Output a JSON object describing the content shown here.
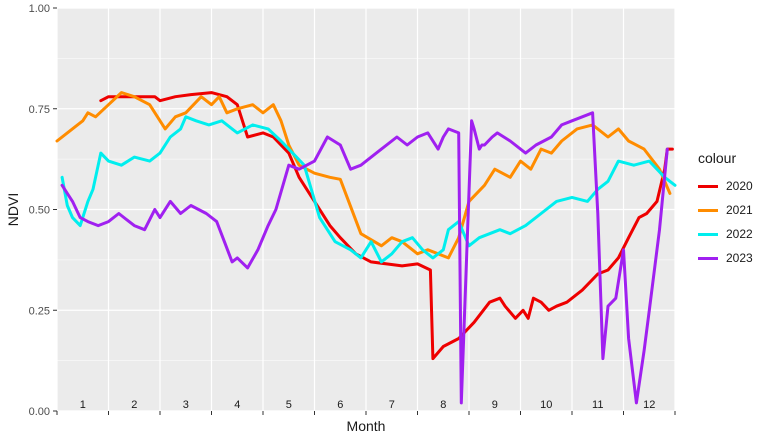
{
  "chart_data": {
    "type": "line",
    "xlabel": "Month",
    "ylabel": "NDVI",
    "ylim": [
      0,
      1
    ],
    "xlim": [
      0.5,
      12.5
    ],
    "y_ticks": [
      "0.00",
      "0.25",
      "0.50",
      "0.75",
      "1.00"
    ],
    "y_tick_values": [
      0,
      0.25,
      0.5,
      0.75,
      1.0
    ],
    "month_labels": [
      "1",
      "2",
      "3",
      "4",
      "5",
      "6",
      "7",
      "8",
      "9",
      "10",
      "11",
      "12"
    ],
    "month_label_values": [
      1,
      2,
      3,
      4,
      5,
      6,
      7,
      8,
      9,
      10,
      11,
      12
    ],
    "grid": true,
    "legend_title": "colour",
    "legend_position": "right",
    "series": [
      {
        "name": "2020",
        "color": "#ee0000",
        "x": [
          1.35,
          1.5,
          1.75,
          2.1,
          2.4,
          2.5,
          2.8,
          3.1,
          3.5,
          3.8,
          4.0,
          4.2,
          4.5,
          4.7,
          5.0,
          5.2,
          5.5,
          5.8,
          6.0,
          6.3,
          6.6,
          6.9,
          7.2,
          7.5,
          7.75,
          7.8,
          8.0,
          8.3,
          8.6,
          8.9,
          9.1,
          9.2,
          9.4,
          9.55,
          9.65,
          9.75,
          9.9,
          10.05,
          10.2,
          10.4,
          10.7,
          11.0,
          11.2,
          11.4,
          11.6,
          11.8,
          11.95,
          12.15,
          12.3,
          12.35,
          12.45
        ],
        "y": [
          0.77,
          0.78,
          0.78,
          0.78,
          0.78,
          0.77,
          0.78,
          0.785,
          0.79,
          0.78,
          0.76,
          0.68,
          0.69,
          0.68,
          0.64,
          0.58,
          0.52,
          0.46,
          0.43,
          0.39,
          0.37,
          0.365,
          0.36,
          0.365,
          0.35,
          0.13,
          0.16,
          0.18,
          0.22,
          0.27,
          0.28,
          0.26,
          0.23,
          0.25,
          0.23,
          0.28,
          0.27,
          0.25,
          0.26,
          0.27,
          0.3,
          0.34,
          0.35,
          0.38,
          0.43,
          0.48,
          0.49,
          0.52,
          0.6,
          0.65,
          0.65
        ]
      },
      {
        "name": "2021",
        "color": "#ff8c00",
        "x": [
          0.5,
          0.7,
          1.0,
          1.1,
          1.25,
          1.5,
          1.75,
          2.0,
          2.3,
          2.5,
          2.6,
          2.8,
          3.0,
          3.3,
          3.5,
          3.65,
          3.8,
          4.0,
          4.3,
          4.5,
          4.7,
          4.85,
          5.0,
          5.2,
          5.5,
          5.8,
          6.0,
          6.4,
          6.8,
          7.0,
          7.2,
          7.5,
          7.7,
          7.9,
          8.1,
          8.3,
          8.5,
          8.8,
          9.0,
          9.3,
          9.5,
          9.7,
          9.9,
          10.1,
          10.3,
          10.6,
          10.9,
          11.2,
          11.4,
          11.6,
          11.9,
          12.2,
          12.4
        ],
        "y": [
          0.67,
          0.69,
          0.72,
          0.74,
          0.73,
          0.76,
          0.79,
          0.78,
          0.76,
          0.72,
          0.7,
          0.73,
          0.74,
          0.78,
          0.76,
          0.78,
          0.74,
          0.75,
          0.76,
          0.74,
          0.76,
          0.72,
          0.66,
          0.61,
          0.59,
          0.58,
          0.575,
          0.44,
          0.41,
          0.43,
          0.42,
          0.39,
          0.4,
          0.39,
          0.38,
          0.43,
          0.52,
          0.56,
          0.6,
          0.58,
          0.62,
          0.6,
          0.65,
          0.64,
          0.67,
          0.7,
          0.71,
          0.68,
          0.7,
          0.67,
          0.65,
          0.6,
          0.54
        ]
      },
      {
        "name": "2022",
        "color": "#00eeee",
        "x": [
          0.6,
          0.7,
          0.8,
          0.95,
          1.1,
          1.2,
          1.35,
          1.5,
          1.75,
          2.0,
          2.3,
          2.5,
          2.7,
          2.9,
          3.0,
          3.2,
          3.45,
          3.7,
          3.9,
          4.0,
          4.3,
          4.6,
          4.85,
          5.0,
          5.3,
          5.6,
          5.9,
          6.2,
          6.4,
          6.6,
          6.8,
          7.0,
          7.2,
          7.4,
          7.6,
          7.8,
          8.0,
          8.1,
          8.3,
          8.5,
          8.7,
          8.9,
          9.1,
          9.3,
          9.6,
          9.9,
          10.2,
          10.5,
          10.8,
          11.0,
          11.2,
          11.4,
          11.7,
          12.0,
          12.3,
          12.5
        ],
        "y": [
          0.58,
          0.51,
          0.48,
          0.46,
          0.52,
          0.55,
          0.64,
          0.62,
          0.61,
          0.63,
          0.62,
          0.64,
          0.68,
          0.7,
          0.73,
          0.72,
          0.71,
          0.72,
          0.7,
          0.69,
          0.71,
          0.7,
          0.67,
          0.65,
          0.61,
          0.48,
          0.42,
          0.4,
          0.38,
          0.42,
          0.37,
          0.39,
          0.42,
          0.43,
          0.4,
          0.38,
          0.4,
          0.45,
          0.47,
          0.41,
          0.43,
          0.44,
          0.45,
          0.44,
          0.46,
          0.49,
          0.52,
          0.53,
          0.52,
          0.55,
          0.57,
          0.62,
          0.61,
          0.62,
          0.58,
          0.56
        ]
      },
      {
        "name": "2023",
        "color": "#a020f0",
        "x": [
          0.6,
          0.7,
          0.8,
          0.95,
          1.1,
          1.3,
          1.5,
          1.7,
          1.9,
          2.0,
          2.2,
          2.4,
          2.5,
          2.7,
          2.9,
          3.1,
          3.4,
          3.6,
          3.75,
          3.9,
          4.0,
          4.2,
          4.4,
          4.6,
          4.75,
          5.0,
          5.2,
          5.5,
          5.75,
          6.0,
          6.2,
          6.4,
          6.8,
          7.1,
          7.3,
          7.5,
          7.7,
          7.9,
          8.0,
          8.1,
          8.3,
          8.35,
          8.55,
          8.6,
          8.7,
          8.75,
          8.8,
          8.95,
          9.05,
          9.3,
          9.6,
          9.8,
          10.1,
          10.3,
          10.5,
          10.7,
          10.9,
          11.0,
          11.1,
          11.2,
          11.35,
          11.5,
          11.6,
          11.75,
          11.9,
          12.0,
          12.2,
          12.35
        ],
        "y": [
          0.56,
          0.54,
          0.52,
          0.48,
          0.47,
          0.46,
          0.47,
          0.49,
          0.47,
          0.46,
          0.45,
          0.5,
          0.48,
          0.52,
          0.49,
          0.51,
          0.49,
          0.47,
          0.42,
          0.37,
          0.38,
          0.355,
          0.4,
          0.46,
          0.5,
          0.61,
          0.6,
          0.62,
          0.68,
          0.66,
          0.6,
          0.61,
          0.65,
          0.68,
          0.66,
          0.68,
          0.69,
          0.65,
          0.68,
          0.7,
          0.69,
          0.02,
          0.72,
          0.7,
          0.65,
          0.66,
          0.66,
          0.68,
          0.69,
          0.67,
          0.64,
          0.66,
          0.68,
          0.71,
          0.72,
          0.73,
          0.74,
          0.49,
          0.13,
          0.26,
          0.28,
          0.4,
          0.18,
          0.02,
          0.15,
          0.25,
          0.45,
          0.65
        ]
      }
    ]
  }
}
